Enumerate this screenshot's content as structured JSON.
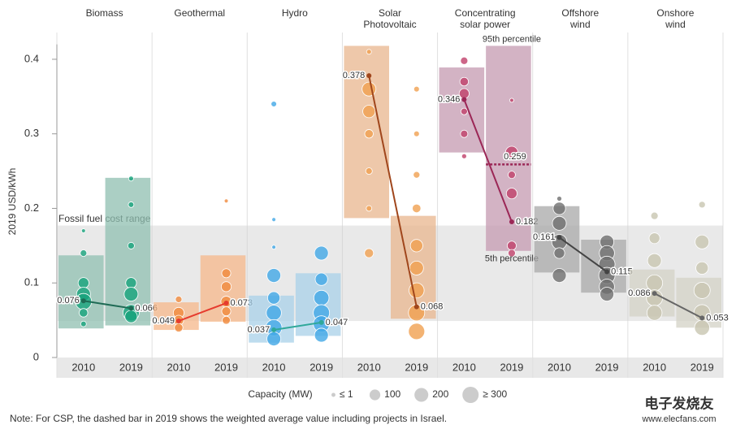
{
  "chart_data": {
    "type": "range-bubble",
    "y_axis_label": "2019 USD/kWh",
    "ylim": [
      0,
      0.42
    ],
    "yticks": [
      0,
      0.1,
      0.2,
      0.3,
      0.4
    ],
    "fossil_range": {
      "label": "Fossil fuel cost range",
      "range": [
        0.049,
        0.177
      ]
    },
    "annotations": {
      "p95": "95th percentile",
      "p5": "5th percentile"
    },
    "groups": [
      {
        "name_lines": [
          "Biomass"
        ],
        "color": "#17a37c",
        "box_color": "#8fbfb0",
        "line_color": "#1f6b55",
        "years": [
          "2010",
          "2019"
        ],
        "ranges": [
          [
            0.039,
            0.137
          ],
          [
            0.043,
            0.241
          ]
        ],
        "weighted_average": [
          0.076,
          0.066
        ],
        "projects": [
          [
            [
              0.17,
              1
            ],
            [
              0.14,
              20
            ],
            [
              0.1,
              100
            ],
            [
              0.085,
              200
            ],
            [
              0.075,
              300
            ],
            [
              0.06,
              50
            ],
            [
              0.045,
              10
            ]
          ],
          [
            [
              0.24,
              5
            ],
            [
              0.205,
              10
            ],
            [
              0.15,
              20
            ],
            [
              0.1,
              100
            ],
            [
              0.085,
              200
            ],
            [
              0.06,
              300
            ],
            [
              0.055,
              150
            ]
          ]
        ]
      },
      {
        "name_lines": [
          "Geothermal"
        ],
        "color": "#f08a3c",
        "box_color": "#f5b78a",
        "line_color": "#e63b2e",
        "years": [
          "2010",
          "2019"
        ],
        "ranges": [
          [
            0.037,
            0.074
          ],
          [
            0.048,
            0.137
          ]
        ],
        "weighted_average": [
          0.049,
          0.073
        ],
        "projects": [
          [
            [
              0.078,
              20
            ],
            [
              0.06,
              100
            ],
            [
              0.05,
              80
            ],
            [
              0.04,
              50
            ]
          ],
          [
            [
              0.21,
              1
            ],
            [
              0.113,
              60
            ],
            [
              0.095,
              80
            ],
            [
              0.075,
              100
            ],
            [
              0.062,
              60
            ],
            [
              0.05,
              40
            ]
          ]
        ]
      },
      {
        "name_lines": [
          "Hydro"
        ],
        "color": "#41a8e6",
        "box_color": "#a8d0e8",
        "line_color": "#2fa89a",
        "years": [
          "2010",
          "2019"
        ],
        "ranges": [
          [
            0.02,
            0.083
          ],
          [
            0.029,
            0.113
          ]
        ],
        "weighted_average": [
          0.037,
          0.047
        ],
        "projects": [
          [
            [
              0.34,
              10
            ],
            [
              0.185,
              1
            ],
            [
              0.148,
              1
            ],
            [
              0.11,
              200
            ],
            [
              0.08,
              150
            ],
            [
              0.06,
              250
            ],
            [
              0.04,
              300
            ],
            [
              0.025,
              200
            ]
          ],
          [
            [
              0.14,
              200
            ],
            [
              0.105,
              150
            ],
            [
              0.08,
              250
            ],
            [
              0.06,
              300
            ],
            [
              0.045,
              300
            ],
            [
              0.03,
              200
            ]
          ]
        ]
      },
      {
        "name_lines": [
          "Solar",
          "Photovoltaic"
        ],
        "color": "#f0a050",
        "box_color": "#e8b68e",
        "line_color": "#a0461c",
        "years": [
          "2010",
          "2019"
        ],
        "ranges": [
          [
            0.187,
            0.418
          ],
          [
            0.052,
            0.19
          ]
        ],
        "weighted_average": [
          0.378,
          0.068
        ],
        "projects": [
          [
            [
              0.41,
              5
            ],
            [
              0.36,
              200
            ],
            [
              0.33,
              150
            ],
            [
              0.3,
              50
            ],
            [
              0.25,
              20
            ],
            [
              0.2,
              10
            ],
            [
              0.14,
              60
            ]
          ],
          [
            [
              0.36,
              10
            ],
            [
              0.3,
              10
            ],
            [
              0.245,
              20
            ],
            [
              0.2,
              50
            ],
            [
              0.15,
              150
            ],
            [
              0.12,
              200
            ],
            [
              0.09,
              250
            ],
            [
              0.06,
              300
            ],
            [
              0.035,
              300
            ]
          ]
        ]
      },
      {
        "name_lines": [
          "Concentrating",
          "solar power"
        ],
        "color": "#c0406a",
        "box_color": "#c49ab0",
        "line_color": "#9b2756",
        "years": [
          "2010",
          "2019"
        ],
        "ranges": [
          [
            0.275,
            0.389
          ],
          [
            0.143,
            0.418
          ]
        ],
        "weighted_average": [
          0.346,
          0.182
        ],
        "average_incl_israel": 0.259,
        "projects": [
          [
            [
              0.398,
              30
            ],
            [
              0.37,
              50
            ],
            [
              0.354,
              80
            ],
            [
              0.33,
              20
            ],
            [
              0.3,
              30
            ],
            [
              0.27,
              5
            ]
          ],
          [
            [
              0.345,
              1
            ],
            [
              0.275,
              150
            ],
            [
              0.245,
              30
            ],
            [
              0.22,
              100
            ],
            [
              0.15,
              60
            ],
            [
              0.14,
              30
            ]
          ]
        ]
      },
      {
        "name_lines": [
          "Offshore",
          "wind"
        ],
        "color": "#6f6f6f",
        "box_color": "#a8a8a8",
        "line_color": "#444444",
        "years": [
          "2010",
          "2019"
        ],
        "ranges": [
          [
            0.114,
            0.203
          ],
          [
            0.087,
            0.158
          ]
        ],
        "weighted_average": [
          0.161,
          0.115
        ],
        "projects": [
          [
            [
              0.213,
              5
            ],
            [
              0.2,
              150
            ],
            [
              0.18,
              200
            ],
            [
              0.155,
              250
            ],
            [
              0.14,
              100
            ],
            [
              0.11,
              200
            ]
          ],
          [
            [
              0.155,
              200
            ],
            [
              0.14,
              250
            ],
            [
              0.125,
              300
            ],
            [
              0.11,
              300
            ],
            [
              0.095,
              250
            ],
            [
              0.085,
              200
            ]
          ]
        ]
      },
      {
        "name_lines": [
          "Onshore",
          "wind"
        ],
        "color": "#c8c6b0",
        "box_color": "#d3d1c5",
        "line_color": "#666666",
        "years": [
          "2010",
          "2019"
        ],
        "ranges": [
          [
            0.055,
            0.118
          ],
          [
            0.04,
            0.107
          ]
        ],
        "weighted_average": [
          0.086,
          0.053
        ],
        "projects": [
          [
            [
              0.19,
              30
            ],
            [
              0.16,
              100
            ],
            [
              0.13,
              200
            ],
            [
              0.1,
              300
            ],
            [
              0.08,
              300
            ],
            [
              0.06,
              250
            ]
          ],
          [
            [
              0.205,
              20
            ],
            [
              0.155,
              200
            ],
            [
              0.12,
              150
            ],
            [
              0.09,
              300
            ],
            [
              0.06,
              300
            ],
            [
              0.04,
              250
            ]
          ]
        ]
      }
    ],
    "size_legend": {
      "title": "Capacity (MW)",
      "entries": [
        {
          "value": 1,
          "label": "≤ 1"
        },
        100,
        200,
        {
          "value": 300,
          "label": "≥ 300"
        }
      ]
    },
    "note": "Note: For CSP, the dashed bar in 2019 shows the weighted average value including projects in Israel.",
    "watermark": [
      "电子发烧友",
      "www.elecfans.com"
    ]
  }
}
